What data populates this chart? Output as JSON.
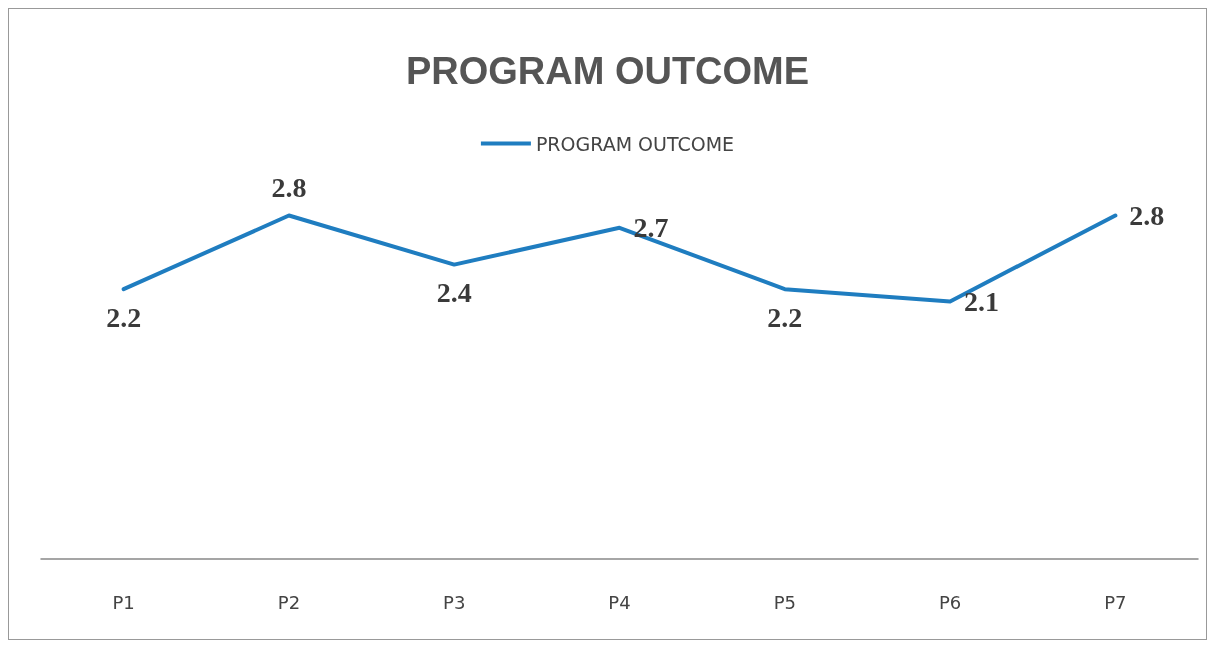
{
  "chart_data": {
    "type": "line",
    "title": "PROGRAM OUTCOME",
    "categories": [
      "P1",
      "P2",
      "P3",
      "P4",
      "P5",
      "P6",
      "P7"
    ],
    "series": [
      {
        "name": "PROGRAM OUTCOME",
        "color": "#1f7dc0",
        "values": [
          2.2,
          2.8,
          2.4,
          2.7,
          2.2,
          2.1,
          2.8
        ]
      }
    ],
    "data_labels": true,
    "legend": "top",
    "grid": false,
    "marker": "none",
    "line_style": "solid"
  }
}
